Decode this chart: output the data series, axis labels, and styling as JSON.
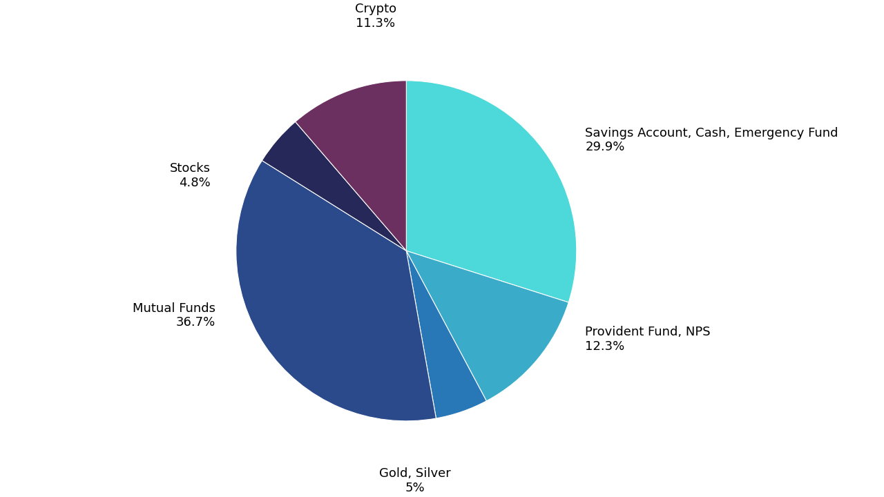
{
  "labels": [
    "Savings Account, Cash, Emergency Fund",
    "Provident Fund, NPS",
    "Gold, Silver",
    "Mutual Funds",
    "Stocks",
    "Crypto"
  ],
  "values": [
    29.9,
    12.3,
    5.0,
    36.7,
    4.8,
    11.3
  ],
  "colors": [
    "#4DD9D9",
    "#3AACCA",
    "#2878B8",
    "#2B4A8C",
    "#252858",
    "#6B3060"
  ],
  "background_color": "#ffffff",
  "text_color": "#000000",
  "label_fontsize": 13,
  "figure_width": 12.8,
  "figure_height": 7.2,
  "startangle": 90
}
